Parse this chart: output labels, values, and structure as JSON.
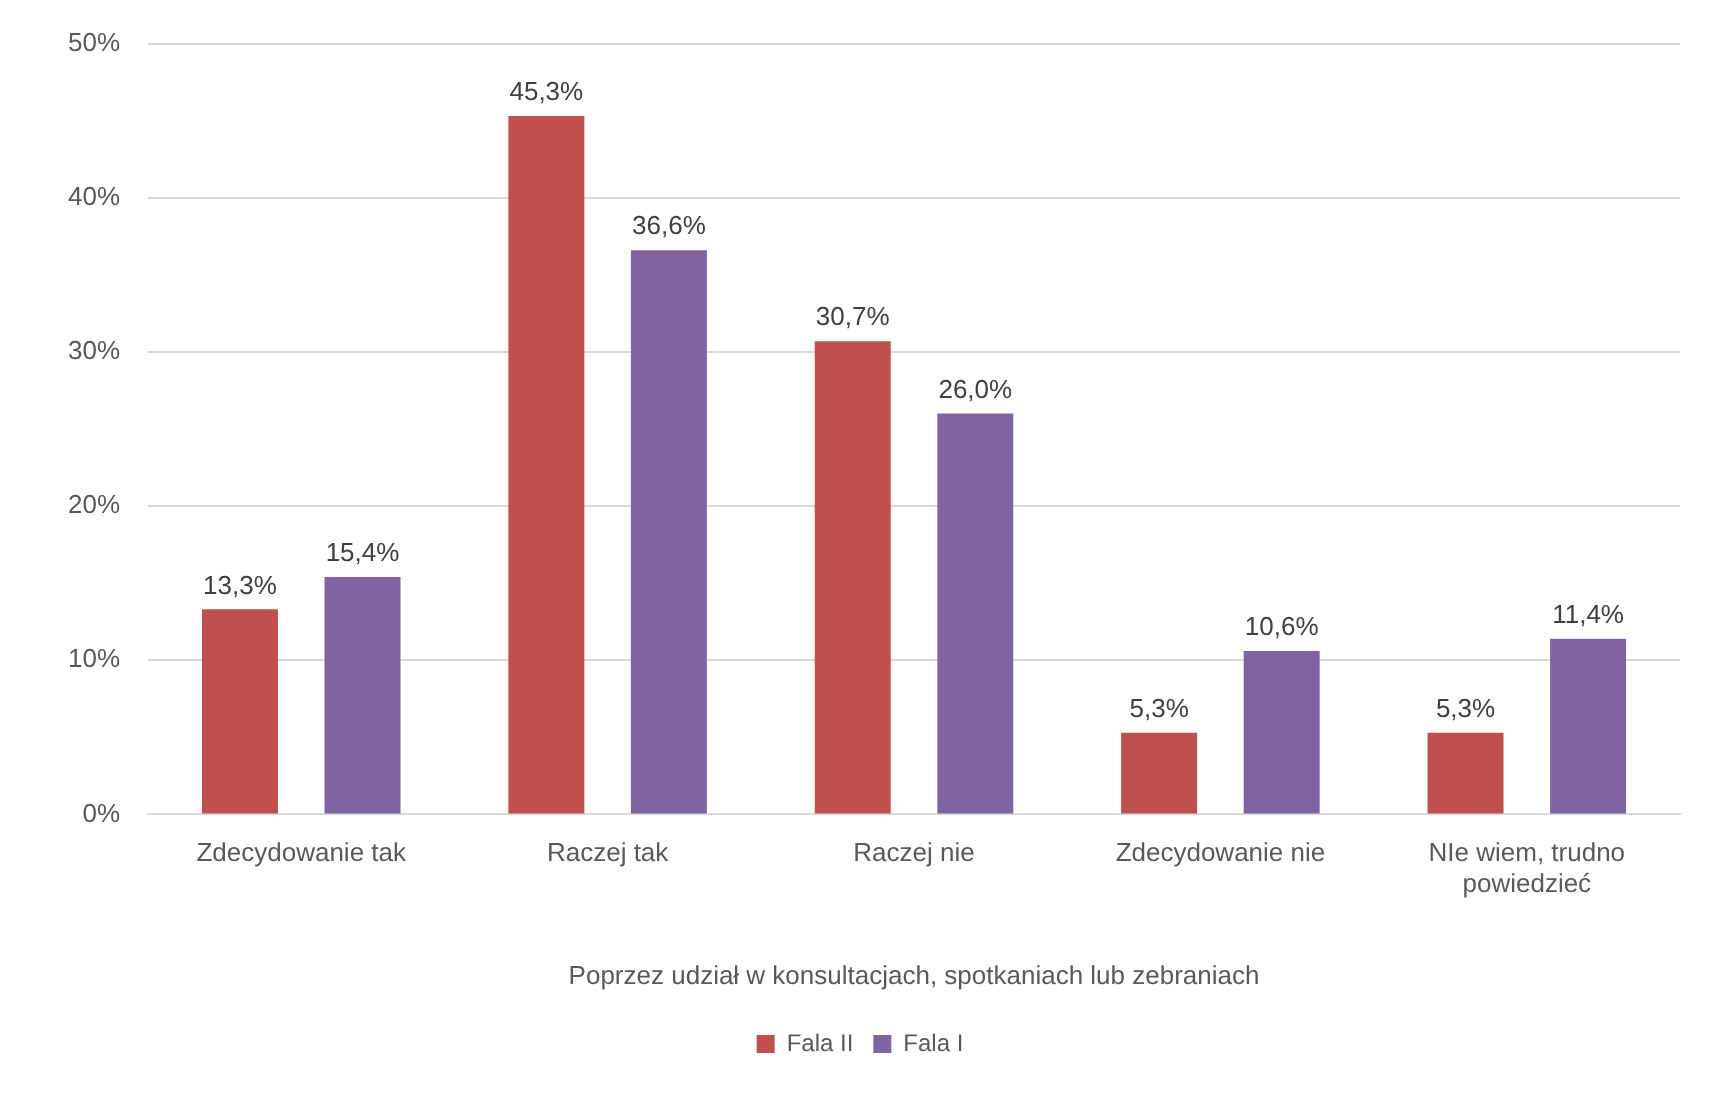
{
  "chart_data": {
    "type": "bar",
    "categories": [
      "Zdecydowanie tak",
      "Raczej tak",
      "Raczej nie",
      "Zdecydowanie nie",
      "NIe wiem, trudno powiedzieć"
    ],
    "series": [
      {
        "name": "Fala II",
        "color": "#c0504d",
        "values": [
          13.3,
          45.3,
          30.7,
          5.3,
          5.3
        ],
        "value_labels": [
          "13,3%",
          "45,3%",
          "30,7%",
          "5,3%",
          "5,3%"
        ]
      },
      {
        "name": "Fala I",
        "color": "#8064a2",
        "values": [
          15.4,
          36.6,
          26.0,
          10.6,
          11.4
        ],
        "value_labels": [
          "15,4%",
          "36,6%",
          "26,0%",
          "10,6%",
          "11,4%"
        ]
      }
    ],
    "xlabel": "Poprzez udział w konsultacjach, spotkaniach lub zebraniach",
    "ylim": [
      0,
      50
    ],
    "yticks": [
      {
        "value": 0,
        "label": "0%"
      },
      {
        "value": 10,
        "label": "10%"
      },
      {
        "value": 20,
        "label": "20%"
      },
      {
        "value": 30,
        "label": "30%"
      },
      {
        "value": 40,
        "label": "40%"
      },
      {
        "value": 50,
        "label": "50%"
      }
    ],
    "grid": "y",
    "legend": "bottom"
  }
}
